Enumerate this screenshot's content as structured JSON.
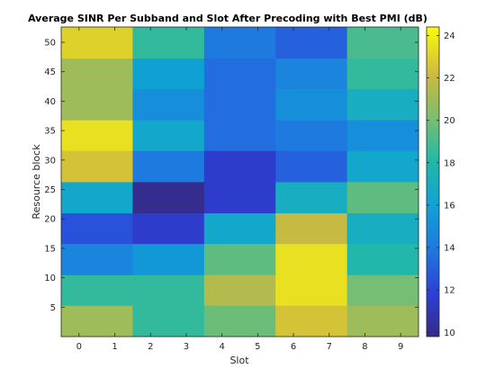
{
  "chart_data": {
    "type": "heatmap",
    "title": "Average SINR Per Subband and Slot After Precoding with Best PMI (dB)",
    "xlabel": "Slot",
    "ylabel": "Resource block",
    "x_ticks": [
      0,
      1,
      2,
      3,
      4,
      5,
      6,
      7,
      8,
      9
    ],
    "x_tick_labels": [
      "0",
      "1",
      "2",
      "3",
      "4",
      "5",
      "6",
      "7",
      "8",
      "9"
    ],
    "xlim": [
      -0.5,
      9.5
    ],
    "y_ticks": [
      5,
      10,
      15,
      20,
      25,
      30,
      35,
      40,
      45,
      50
    ],
    "y_tick_labels": [
      "5",
      "10",
      "15",
      "20",
      "25",
      "30",
      "35",
      "40",
      "45",
      "50"
    ],
    "ylim": [
      0,
      52.6
    ],
    "y_direction": "up",
    "slot_pairs": [
      "0-1",
      "2-3",
      "4-5",
      "6-7",
      "8-9"
    ],
    "subband_rows": [
      {
        "rb_start": 0,
        "rb_end": 5.3,
        "values": [
          21.0,
          18.5,
          19.8,
          22.5,
          21.0
        ]
      },
      {
        "rb_start": 5.3,
        "rb_end": 10.5,
        "values": [
          18.5,
          18.5,
          21.5,
          23.5,
          20.0
        ]
      },
      {
        "rb_start": 10.5,
        "rb_end": 15.8,
        "values": [
          14.5,
          15.5,
          19.5,
          23.5,
          18.0
        ]
      },
      {
        "rb_start": 15.8,
        "rb_end": 21.0,
        "values": [
          12.5,
          11.5,
          16.5,
          22.0,
          17.0
        ]
      },
      {
        "rb_start": 21.0,
        "rb_end": 26.3,
        "values": [
          16.5,
          10.0,
          11.5,
          17.0,
          19.5
        ]
      },
      {
        "rb_start": 26.3,
        "rb_end": 31.6,
        "values": [
          22.5,
          14.0,
          11.5,
          13.0,
          16.5
        ]
      },
      {
        "rb_start": 31.6,
        "rb_end": 36.8,
        "values": [
          23.5,
          16.5,
          13.5,
          14.0,
          15.0
        ]
      },
      {
        "rb_start": 36.8,
        "rb_end": 42.1,
        "values": [
          21.0,
          15.0,
          13.5,
          15.0,
          17.0
        ]
      },
      {
        "rb_start": 42.1,
        "rb_end": 47.3,
        "values": [
          21.0,
          16.0,
          13.5,
          14.5,
          18.5
        ]
      },
      {
        "rb_start": 47.3,
        "rb_end": 52.6,
        "values": [
          23.0,
          18.5,
          14.0,
          13.0,
          19.0
        ]
      }
    ],
    "colorbar": {
      "ticks": [
        10,
        12,
        14,
        16,
        18,
        20,
        22,
        24
      ],
      "tick_labels": [
        "10",
        "12",
        "14",
        "16",
        "18",
        "20",
        "22",
        "24"
      ],
      "range": [
        9.8,
        24.4
      ],
      "placement": "right",
      "colormap": "parula"
    },
    "grid": false
  }
}
